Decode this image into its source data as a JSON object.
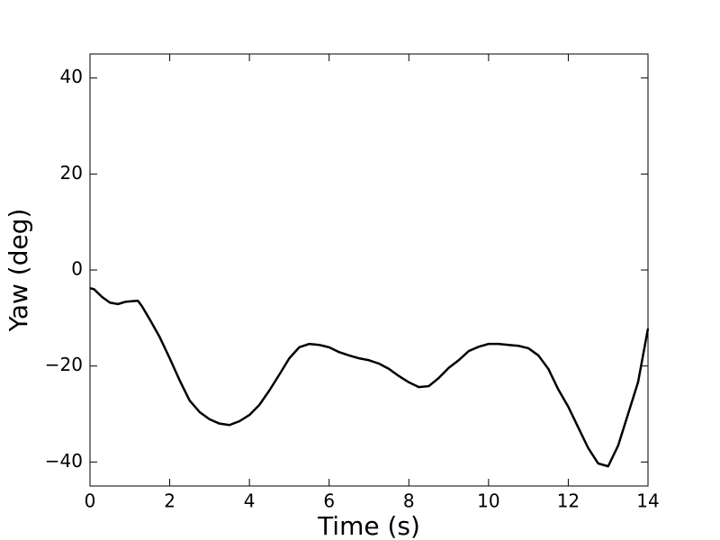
{
  "chart_data": {
    "type": "line",
    "xlabel": "Time (s)",
    "ylabel": "Yaw (deg)",
    "x": [
      0,
      0.1,
      0.3,
      0.5,
      0.7,
      0.9,
      1.2,
      1.3,
      1.5,
      1.75,
      2.0,
      2.25,
      2.5,
      2.75,
      3.0,
      3.25,
      3.5,
      3.75,
      4.0,
      4.25,
      4.5,
      4.75,
      5.0,
      5.25,
      5.5,
      5.75,
      6.0,
      6.25,
      6.5,
      6.75,
      7.0,
      7.25,
      7.5,
      7.75,
      8.0,
      8.25,
      8.5,
      8.75,
      9.0,
      9.25,
      9.5,
      9.75,
      10.0,
      10.25,
      10.5,
      10.75,
      11.0,
      11.25,
      11.5,
      11.75,
      12.0,
      12.25,
      12.5,
      12.75,
      13.0,
      13.25,
      13.5,
      13.75,
      14.0
    ],
    "series": [
      {
        "color": "#000000",
        "values": [
          -3.8,
          -4,
          -5.6,
          -6.8,
          -7.1,
          -6.6,
          -6.4,
          -7.5,
          -10.3,
          -14,
          -18.4,
          -23,
          -27.2,
          -29.6,
          -31.1,
          -32,
          -32.3,
          -31.5,
          -30.2,
          -28.1,
          -25.1,
          -21.8,
          -18.4,
          -16.1,
          -15.4,
          -15.6,
          -16.1,
          -17.1,
          -17.8,
          -18.4,
          -18.8,
          -19.5,
          -20.6,
          -22.1,
          -23.4,
          -24.4,
          -24.2,
          -22.5,
          -20.4,
          -18.8,
          -16.9,
          -16,
          -15.4,
          -15.4,
          -15.6,
          -15.8,
          -16.3,
          -17.8,
          -20.6,
          -24.9,
          -28.5,
          -32.8,
          -37.1,
          -40.3,
          -40.9,
          -36.6,
          -30,
          -23.4,
          -12.2
        ]
      }
    ],
    "xlim": [
      0,
      14
    ],
    "xticks": [
      0,
      2,
      4,
      6,
      8,
      10,
      12,
      14
    ],
    "ylim": [
      -45,
      45
    ],
    "yticks": [
      {
        "value": -40,
        "label": "−40"
      },
      {
        "value": -20,
        "label": "−20"
      },
      0,
      20,
      40
    ],
    "grid": false
  }
}
